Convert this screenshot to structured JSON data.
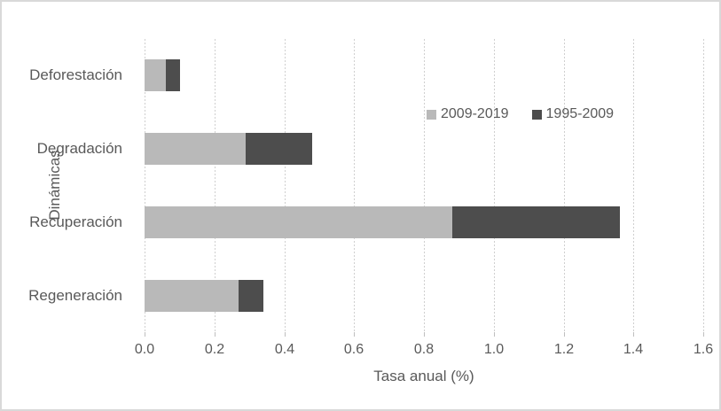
{
  "chart_data": {
    "type": "bar",
    "orientation": "horizontal",
    "stacked": true,
    "title": "",
    "xlabel": "Tasa anual (%)",
    "ylabel": "Dinámicas",
    "categories": [
      "Deforestación",
      "Degradación",
      "Recuperación",
      "Regeneración"
    ],
    "series": [
      {
        "name": "2009-2019",
        "color": "#b9b9b9",
        "values": [
          0.06,
          0.29,
          0.88,
          0.27
        ]
      },
      {
        "name": "1995-2009",
        "color": "#4d4d4d",
        "values": [
          0.04,
          0.19,
          0.48,
          0.07
        ]
      }
    ],
    "xlim": [
      0,
      1.6
    ],
    "xticks": [
      0,
      0.2,
      0.4,
      0.6,
      0.8,
      1.0,
      1.2,
      1.4,
      1.6
    ],
    "xtick_labels": [
      "0.0",
      "0.2",
      "0.4",
      "0.6",
      "0.8",
      "1.0",
      "1.2",
      "1.4",
      "1.6"
    ],
    "grid": true,
    "gridline_color": "#cfcfcf",
    "text_color": "#595959",
    "legend_position": "inside-upper-middle"
  }
}
